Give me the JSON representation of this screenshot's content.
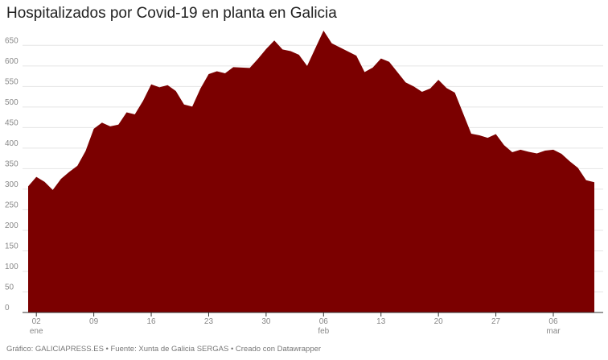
{
  "title": "Hospitalizados por Covid-19 en planta en Galicia",
  "footer": "Gráfico: GALICIAPRESS.ES • Fuente: Xunta de Galicia SERGAS • Creado con Datawrapper",
  "colors": {
    "area": "#7b0000",
    "grid": "#e5e5e5",
    "axis": "#333333",
    "tick_text": "#888888"
  },
  "chart_data": {
    "type": "area",
    "title": "Hospitalizados por Covid-19 en planta en Galicia",
    "xlabel": "",
    "ylabel": "",
    "ylim": [
      0,
      680
    ],
    "yticks": [
      0,
      50,
      100,
      150,
      200,
      250,
      300,
      350,
      400,
      450,
      500,
      550,
      600,
      650
    ],
    "xticks": [
      {
        "index": 1,
        "label": "02",
        "sublabel": "ene"
      },
      {
        "index": 8,
        "label": "09",
        "sublabel": ""
      },
      {
        "index": 15,
        "label": "16",
        "sublabel": ""
      },
      {
        "index": 22,
        "label": "23",
        "sublabel": ""
      },
      {
        "index": 29,
        "label": "30",
        "sublabel": ""
      },
      {
        "index": 36,
        "label": "06",
        "sublabel": "feb"
      },
      {
        "index": 43,
        "label": "13",
        "sublabel": ""
      },
      {
        "index": 50,
        "label": "20",
        "sublabel": ""
      },
      {
        "index": 57,
        "label": "27",
        "sublabel": ""
      },
      {
        "index": 64,
        "label": "06",
        "sublabel": "mar"
      }
    ],
    "grid": true,
    "series": [
      {
        "values": [
          307,
          330,
          318,
          298,
          325,
          342,
          357,
          393,
          447,
          462,
          453,
          457,
          487,
          482,
          515,
          555,
          548,
          553,
          539,
          506,
          501,
          545,
          580,
          587,
          582,
          597,
          596,
          595,
          617,
          641,
          662,
          640,
          636,
          627,
          600,
          643,
          686,
          655,
          645,
          635,
          625,
          585,
          596,
          618,
          610,
          585,
          560,
          550,
          537,
          545,
          566,
          546,
          535,
          485,
          435,
          431,
          425,
          434,
          407,
          390,
          396,
          391,
          387,
          394,
          396,
          386,
          368,
          352,
          322,
          317
        ]
      }
    ]
  }
}
